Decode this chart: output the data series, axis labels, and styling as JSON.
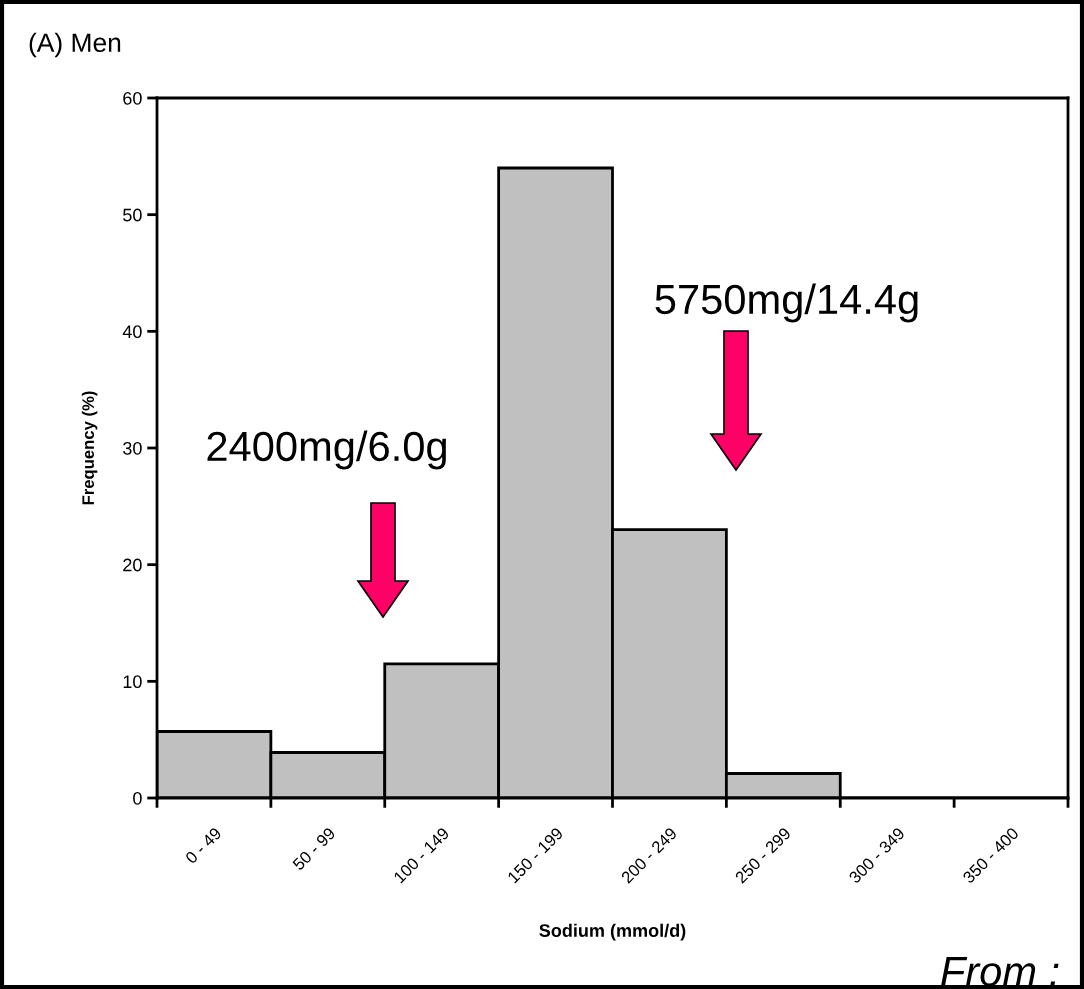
{
  "chart_data": {
    "type": "bar",
    "title": "(A) Men",
    "xlabel": "Sodium (mmol/d)",
    "ylabel": "Frequency (%)",
    "categories": [
      "0 - 49",
      "50 - 99",
      "100 - 149",
      "150 - 199",
      "200 - 249",
      "250 - 299",
      "300 - 349",
      "350 - 400"
    ],
    "values": [
      5.7,
      3.9,
      11.5,
      54,
      23,
      2.1,
      0,
      0
    ],
    "color": "#c0c0c0",
    "ylim": [
      0,
      60
    ],
    "yticks": [
      0,
      10,
      20,
      30,
      40,
      50,
      60
    ],
    "grid": false,
    "annotations": [
      "2400mg/6.0g",
      "5750mg/14.4g",
      "From :"
    ]
  }
}
